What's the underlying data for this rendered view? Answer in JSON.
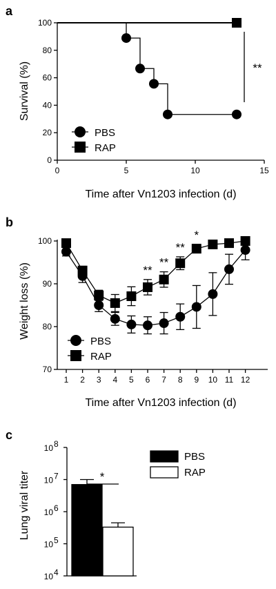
{
  "chart_data": [
    {
      "panel": "a",
      "type": "line",
      "step": true,
      "xlabel": "Time after Vn1203 infection (d)",
      "ylabel": "Survival (%)",
      "xlim": [
        0,
        15
      ],
      "ylim": [
        0,
        100
      ],
      "xticks": [
        "0",
        "5",
        "10",
        "15"
      ],
      "yticks": [
        "0",
        "20",
        "40",
        "60",
        "80",
        "100"
      ],
      "series": [
        {
          "name": "PBS",
          "marker": "circle",
          "x": [
            5,
            6,
            7,
            8,
            13
          ],
          "y": [
            88.9,
            66.7,
            55.6,
            33.3,
            33.3
          ]
        },
        {
          "name": "RAP",
          "marker": "square",
          "x": [
            13
          ],
          "y": [
            100
          ]
        }
      ],
      "annotation": "**",
      "legend_position": "bottom-left"
    },
    {
      "panel": "b",
      "type": "line",
      "xlabel": "Time after Vn1203 infection (d)",
      "ylabel": "Weight loss (%)",
      "ylim": [
        70,
        100
      ],
      "categories": [
        "1",
        "2",
        "3",
        "4",
        "5",
        "6",
        "7",
        "8",
        "9",
        "10",
        "11",
        "12"
      ],
      "yticks": [
        "70",
        "80",
        "90",
        "100"
      ],
      "series": [
        {
          "name": "PBS",
          "marker": "circle",
          "values": [
            97.5,
            91.8,
            85.0,
            81.8,
            80.5,
            80.3,
            80.8,
            82.3,
            84.6,
            87.6,
            93.4,
            97.9
          ],
          "errors": [
            1.0,
            1.5,
            1.5,
            1.5,
            2.0,
            2.0,
            2.5,
            3.0,
            5.0,
            5.0,
            3.5,
            2.3
          ]
        },
        {
          "name": "RAP",
          "marker": "square",
          "values": [
            99.5,
            93.1,
            87.3,
            85.5,
            87.1,
            89.2,
            91.0,
            94.8,
            98.2,
            99.2,
            99.5,
            100.0
          ],
          "errors": [
            0.8,
            1.0,
            1.2,
            2.0,
            2.2,
            1.8,
            1.8,
            1.5,
            1.0,
            0.6,
            0.5,
            0.5
          ]
        }
      ],
      "significance": [
        {
          "x": "6",
          "label": "**"
        },
        {
          "x": "7",
          "label": "**"
        },
        {
          "x": "8",
          "label": "**"
        },
        {
          "x": "9",
          "label": "*"
        }
      ],
      "legend_position": "bottom-left"
    },
    {
      "panel": "c",
      "type": "bar",
      "ylabel": "Lung viral titer",
      "yscale": "log",
      "ylim": [
        10000,
        100000000
      ],
      "yticks": [
        {
          "base": "10",
          "exp": "4"
        },
        {
          "base": "10",
          "exp": "5"
        },
        {
          "base": "10",
          "exp": "6"
        },
        {
          "base": "10",
          "exp": "7"
        },
        {
          "base": "10",
          "exp": "8"
        }
      ],
      "series": [
        {
          "name": "PBS",
          "value": 7000000,
          "error_upper": 10000000,
          "fill": "#000000"
        },
        {
          "name": "RAP",
          "value": 330000,
          "error_upper": 450000,
          "fill": "#ffffff"
        }
      ],
      "annotation": "*",
      "legend_position": "top-right"
    }
  ]
}
